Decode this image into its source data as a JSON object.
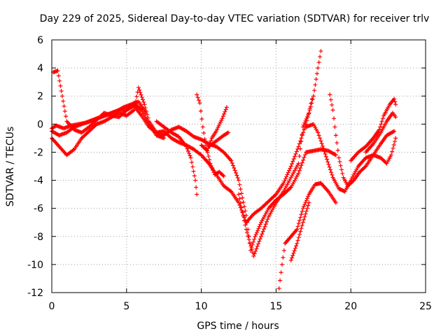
{
  "chart_data": {
    "type": "scatter",
    "title": "Day 229 of 2025, Sidereal Day-to-day VTEC variation (SDTVAR) for receiver trlv",
    "xlabel": "GPS time / hours",
    "ylabel": "SDTVAR / TECUs",
    "xlim": [
      0,
      25
    ],
    "ylim": [
      -12,
      6
    ],
    "xticks": [
      0,
      5,
      10,
      15,
      20,
      25
    ],
    "yticks": [
      -12,
      -10,
      -8,
      -6,
      -4,
      -2,
      0,
      2,
      4,
      6
    ],
    "grid": true,
    "marker": "+",
    "marker_color": "#ff0000",
    "series": [
      {
        "name": "s1",
        "points": [
          [
            0.0,
            -0.5
          ],
          [
            0.5,
            -0.8
          ],
          [
            1.0,
            -0.6
          ],
          [
            1.5,
            -0.2
          ],
          [
            2.0,
            0.0
          ],
          [
            2.5,
            0.2
          ],
          [
            3.0,
            0.4
          ],
          [
            3.5,
            0.6
          ],
          [
            4.0,
            0.8
          ],
          [
            4.5,
            1.0
          ],
          [
            5.0,
            1.0
          ],
          [
            5.5,
            1.3
          ],
          [
            6.0,
            0.6
          ],
          [
            6.5,
            -0.2
          ],
          [
            7.0,
            -0.6
          ],
          [
            7.5,
            -0.8
          ],
          [
            8.0,
            -0.4
          ],
          [
            8.5,
            -0.2
          ],
          [
            9.0,
            -0.5
          ],
          [
            9.5,
            -0.9
          ],
          [
            10.0,
            -1.1
          ],
          [
            10.5,
            -1.4
          ],
          [
            11.0,
            -1.6
          ],
          [
            11.5,
            -2.0
          ],
          [
            12.0,
            -2.6
          ],
          [
            12.5,
            -4.0
          ],
          [
            13.0,
            -6.5
          ],
          [
            13.3,
            -9.0
          ],
          [
            13.6,
            -8.0
          ],
          [
            14.0,
            -7.0
          ],
          [
            14.5,
            -6.0
          ],
          [
            15.0,
            -5.4
          ],
          [
            15.5,
            -5.0
          ],
          [
            16.0,
            -4.5
          ],
          [
            16.5,
            -3.5
          ],
          [
            17.0,
            -2.0
          ],
          [
            17.5,
            -1.9
          ],
          [
            18.0,
            -1.8
          ],
          [
            18.5,
            -1.9
          ],
          [
            19.0,
            -2.2
          ]
        ]
      },
      {
        "name": "s2",
        "points": [
          [
            0.0,
            -1.0
          ],
          [
            0.5,
            -1.6
          ],
          [
            1.0,
            -2.2
          ],
          [
            1.5,
            -1.8
          ],
          [
            2.0,
            -1.0
          ],
          [
            2.5,
            -0.5
          ],
          [
            3.0,
            0.0
          ],
          [
            3.5,
            0.2
          ],
          [
            4.0,
            0.5
          ],
          [
            4.5,
            0.8
          ],
          [
            5.0,
            0.6
          ],
          [
            5.5,
            1.0
          ],
          [
            5.8,
            2.6
          ],
          [
            6.2,
            1.4
          ],
          [
            6.5,
            0.2
          ],
          [
            7.0,
            -0.6
          ],
          [
            7.5,
            -0.5
          ],
          [
            8.0,
            -1.0
          ],
          [
            8.5,
            -1.3
          ],
          [
            9.0,
            -1.5
          ],
          [
            9.5,
            -1.8
          ],
          [
            10.0,
            -2.2
          ],
          [
            10.5,
            -2.8
          ],
          [
            11.0,
            -3.6
          ],
          [
            11.5,
            -4.4
          ],
          [
            12.0,
            -4.8
          ],
          [
            12.5,
            -5.6
          ],
          [
            13.0,
            -7.0
          ],
          [
            13.5,
            -6.4
          ],
          [
            14.0,
            -6.0
          ],
          [
            14.5,
            -5.5
          ],
          [
            15.0,
            -5.0
          ],
          [
            15.5,
            -4.2
          ],
          [
            16.0,
            -3.0
          ],
          [
            16.5,
            -1.6
          ],
          [
            17.0,
            0.0
          ],
          [
            17.5,
            2.0
          ],
          [
            17.8,
            4.0
          ],
          [
            18.0,
            5.2
          ]
        ]
      },
      {
        "name": "s3",
        "points": [
          [
            0.1,
            3.7
          ],
          [
            0.4,
            3.8
          ],
          [
            0.7,
            2.0
          ],
          [
            1.0,
            0.2
          ],
          [
            1.5,
            -0.4
          ],
          [
            2.0,
            -0.6
          ],
          [
            2.5,
            -0.2
          ],
          [
            3.0,
            0.3
          ],
          [
            3.5,
            0.8
          ],
          [
            4.0,
            0.6
          ],
          [
            4.5,
            0.5
          ],
          [
            5.0,
            1.0
          ],
          [
            5.5,
            1.5
          ],
          [
            6.0,
            1.0
          ],
          [
            6.5,
            0.0
          ],
          [
            7.0,
            -0.8
          ],
          [
            7.5,
            -1.0
          ]
        ]
      },
      {
        "name": "s4",
        "points": [
          [
            0.0,
            -0.3
          ],
          [
            0.3,
            -0.1
          ],
          [
            0.8,
            -0.3
          ],
          [
            1.3,
            -0.1
          ],
          [
            1.8,
            0.0
          ],
          [
            2.3,
            0.1
          ],
          [
            2.8,
            0.3
          ],
          [
            3.3,
            0.5
          ],
          [
            3.8,
            0.7
          ],
          [
            4.3,
            0.9
          ],
          [
            4.8,
            1.2
          ],
          [
            5.3,
            1.4
          ],
          [
            5.8,
            1.6
          ],
          [
            6.3,
            0.8
          ]
        ]
      },
      {
        "name": "s5",
        "points": [
          [
            7.0,
            0.2
          ],
          [
            7.5,
            -0.2
          ],
          [
            8.0,
            -0.6
          ],
          [
            8.5,
            -0.9
          ],
          [
            9.0,
            -1.6
          ],
          [
            9.3,
            -2.4
          ],
          [
            9.6,
            -4.0
          ],
          [
            9.7,
            -5.0
          ]
        ]
      },
      {
        "name": "s6",
        "points": [
          [
            9.7,
            2.1
          ],
          [
            9.9,
            1.5
          ],
          [
            10.1,
            -0.2
          ],
          [
            10.3,
            -1.5
          ],
          [
            10.6,
            -2.8
          ],
          [
            10.9,
            -3.6
          ],
          [
            11.2,
            -3.4
          ],
          [
            11.5,
            -3.7
          ]
        ]
      },
      {
        "name": "s7",
        "points": [
          [
            10.0,
            -1.5
          ],
          [
            10.4,
            -1.9
          ],
          [
            10.7,
            -1.0
          ],
          [
            11.0,
            -0.5
          ],
          [
            11.4,
            0.4
          ],
          [
            11.7,
            1.2
          ]
        ]
      },
      {
        "name": "s8",
        "points": [
          [
            10.5,
            -1.6
          ],
          [
            11.0,
            -1.2
          ],
          [
            11.5,
            -0.8
          ],
          [
            11.8,
            -0.6
          ]
        ]
      },
      {
        "name": "s9",
        "points": [
          [
            12.5,
            -5.0
          ],
          [
            13.0,
            -7.5
          ],
          [
            13.5,
            -9.4
          ],
          [
            14.0,
            -8.0
          ],
          [
            14.5,
            -6.6
          ],
          [
            15.0,
            -5.6
          ],
          [
            15.5,
            -4.8
          ],
          [
            16.0,
            -3.8
          ],
          [
            16.5,
            -2.8
          ],
          [
            16.8,
            -0.2
          ],
          [
            17.2,
            0.8
          ],
          [
            17.4,
            1.8
          ]
        ]
      },
      {
        "name": "s10",
        "points": [
          [
            15.2,
            -11.7
          ],
          [
            15.4,
            -10.0
          ],
          [
            15.6,
            -8.5
          ],
          [
            16.0,
            -8.0
          ],
          [
            16.4,
            -7.5
          ],
          [
            16.8,
            -6.0
          ],
          [
            17.2,
            -5.0
          ],
          [
            17.6,
            -4.3
          ],
          [
            18.0,
            -4.2
          ],
          [
            18.5,
            -4.8
          ],
          [
            19.0,
            -5.6
          ]
        ]
      },
      {
        "name": "s11",
        "points": [
          [
            16.0,
            -9.7
          ],
          [
            16.4,
            -8.5
          ],
          [
            16.8,
            -7.0
          ],
          [
            17.2,
            -5.6
          ]
        ]
      },
      {
        "name": "s12",
        "points": [
          [
            17.0,
            -0.2
          ],
          [
            17.5,
            0.0
          ],
          [
            17.8,
            -0.6
          ],
          [
            18.0,
            -1.2
          ],
          [
            18.4,
            -2.5
          ],
          [
            18.8,
            -3.8
          ],
          [
            19.2,
            -4.6
          ],
          [
            19.6,
            -4.8
          ],
          [
            20.0,
            -4.0
          ],
          [
            20.5,
            -3.0
          ],
          [
            21.0,
            -2.4
          ],
          [
            21.5,
            -2.2
          ],
          [
            22.0,
            -2.4
          ],
          [
            22.4,
            -2.8
          ],
          [
            22.7,
            -2.2
          ],
          [
            23.0,
            -1.0
          ]
        ]
      },
      {
        "name": "s13",
        "points": [
          [
            18.6,
            2.1
          ],
          [
            18.8,
            1.0
          ],
          [
            19.0,
            -0.8
          ],
          [
            19.2,
            -2.4
          ],
          [
            19.5,
            -3.8
          ],
          [
            19.8,
            -4.4
          ],
          [
            20.2,
            -4.0
          ],
          [
            20.6,
            -3.4
          ],
          [
            21.0,
            -3.0
          ],
          [
            21.5,
            -2.2
          ],
          [
            22.0,
            -1.4
          ],
          [
            22.4,
            -0.8
          ],
          [
            22.9,
            -0.5
          ]
        ]
      },
      {
        "name": "s14",
        "points": [
          [
            20.0,
            -2.6
          ],
          [
            20.5,
            -2.0
          ],
          [
            21.0,
            -1.6
          ],
          [
            21.5,
            -1.0
          ],
          [
            21.9,
            -0.4
          ],
          [
            22.2,
            0.6
          ],
          [
            22.6,
            1.4
          ],
          [
            22.9,
            1.8
          ],
          [
            23.0,
            1.4
          ]
        ]
      },
      {
        "name": "s15",
        "points": [
          [
            21.0,
            -2.0
          ],
          [
            21.5,
            -1.4
          ],
          [
            22.0,
            -0.6
          ],
          [
            22.4,
            0.2
          ],
          [
            22.8,
            0.8
          ],
          [
            23.0,
            0.5
          ]
        ]
      }
    ]
  }
}
